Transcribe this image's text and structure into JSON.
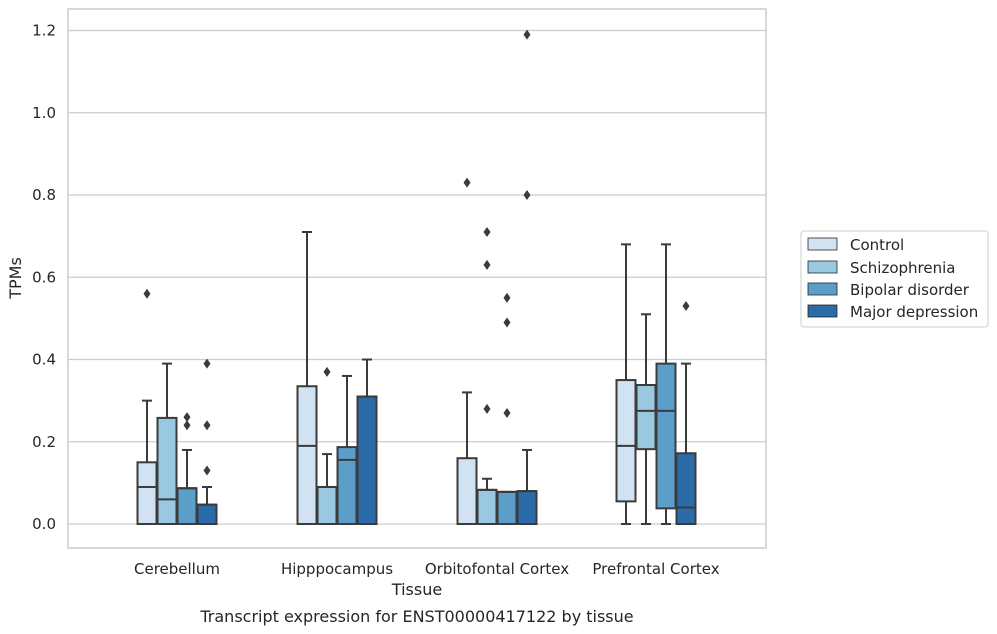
{
  "chart_data": {
    "type": "box",
    "title": "",
    "caption": "Transcript expression for ENST00000417122 by tissue",
    "xlabel": "Tissue",
    "ylabel": "TPMs",
    "ylim": [
      -0.06,
      1.25
    ],
    "yticks": [
      0.0,
      0.2,
      0.4,
      0.6,
      0.8,
      1.0,
      1.2
    ],
    "ytick_labels": [
      "0.0",
      "0.2",
      "0.4",
      "0.6",
      "0.8",
      "1.0",
      "1.2"
    ],
    "grid": "horizontal",
    "legend_position": "right",
    "categories": [
      "Cerebellum",
      "Hipppocampus",
      "Orbitofontal Cortex",
      "Prefrontal Cortex"
    ],
    "series": [
      {
        "name": "Control",
        "color": "#d1e2f2",
        "boxes": [
          {
            "whislo": 0.0,
            "q1": 0.0,
            "med": 0.09,
            "q3": 0.15,
            "whishi": 0.3,
            "fliers": [
              0.56
            ]
          },
          {
            "whislo": 0.0,
            "q1": 0.0,
            "med": 0.19,
            "q3": 0.335,
            "whishi": 0.71,
            "fliers": []
          },
          {
            "whislo": 0.0,
            "q1": 0.0,
            "med": 0.0,
            "q3": 0.16,
            "whishi": 0.32,
            "fliers": [
              0.83
            ]
          },
          {
            "whislo": 0.0,
            "q1": 0.055,
            "med": 0.19,
            "q3": 0.35,
            "whishi": 0.68,
            "fliers": []
          }
        ]
      },
      {
        "name": "Schizophrenia",
        "color": "#9ac8e0",
        "boxes": [
          {
            "whislo": 0.0,
            "q1": 0.0,
            "med": 0.06,
            "q3": 0.258,
            "whishi": 0.39,
            "fliers": []
          },
          {
            "whislo": 0.0,
            "q1": 0.0,
            "med": 0.09,
            "q3": 0.09,
            "whishi": 0.17,
            "fliers": [
              0.37
            ]
          },
          {
            "whislo": 0.0,
            "q1": 0.0,
            "med": 0.083,
            "q3": 0.083,
            "whishi": 0.11,
            "fliers": [
              0.71,
              0.63,
              0.28
            ]
          },
          {
            "whislo": 0.0,
            "q1": 0.182,
            "med": 0.275,
            "q3": 0.338,
            "whishi": 0.51,
            "fliers": []
          }
        ]
      },
      {
        "name": "Bipolar disorder",
        "color": "#5a9ec9",
        "boxes": [
          {
            "whislo": 0.0,
            "q1": 0.0,
            "med": 0.087,
            "q3": 0.087,
            "whishi": 0.18,
            "fliers": [
              0.26,
              0.24
            ]
          },
          {
            "whislo": 0.0,
            "q1": 0.0,
            "med": 0.156,
            "q3": 0.187,
            "whishi": 0.36,
            "fliers": []
          },
          {
            "whislo": 0.0,
            "q1": 0.0,
            "med": 0.078,
            "q3": 0.078,
            "whishi": 0.078,
            "fliers": [
              0.55,
              0.49,
              0.27
            ]
          },
          {
            "whislo": 0.0,
            "q1": 0.038,
            "med": 0.275,
            "q3": 0.39,
            "whishi": 0.68,
            "fliers": []
          }
        ]
      },
      {
        "name": "Major depression",
        "color": "#2b6ba7",
        "boxes": [
          {
            "whislo": 0.0,
            "q1": 0.0,
            "med": 0.047,
            "q3": 0.047,
            "whishi": 0.09,
            "fliers": [
              0.39,
              0.24,
              0.13
            ]
          },
          {
            "whislo": 0.0,
            "q1": 0.0,
            "med": 0.31,
            "q3": 0.31,
            "whishi": 0.4,
            "fliers": []
          },
          {
            "whislo": 0.0,
            "q1": 0.0,
            "med": 0.08,
            "q3": 0.08,
            "whishi": 0.18,
            "fliers": [
              1.19,
              0.8
            ]
          },
          {
            "whislo": 0.0,
            "q1": 0.0,
            "med": 0.04,
            "q3": 0.172,
            "whishi": 0.39,
            "fliers": [
              0.53
            ]
          }
        ]
      }
    ]
  }
}
